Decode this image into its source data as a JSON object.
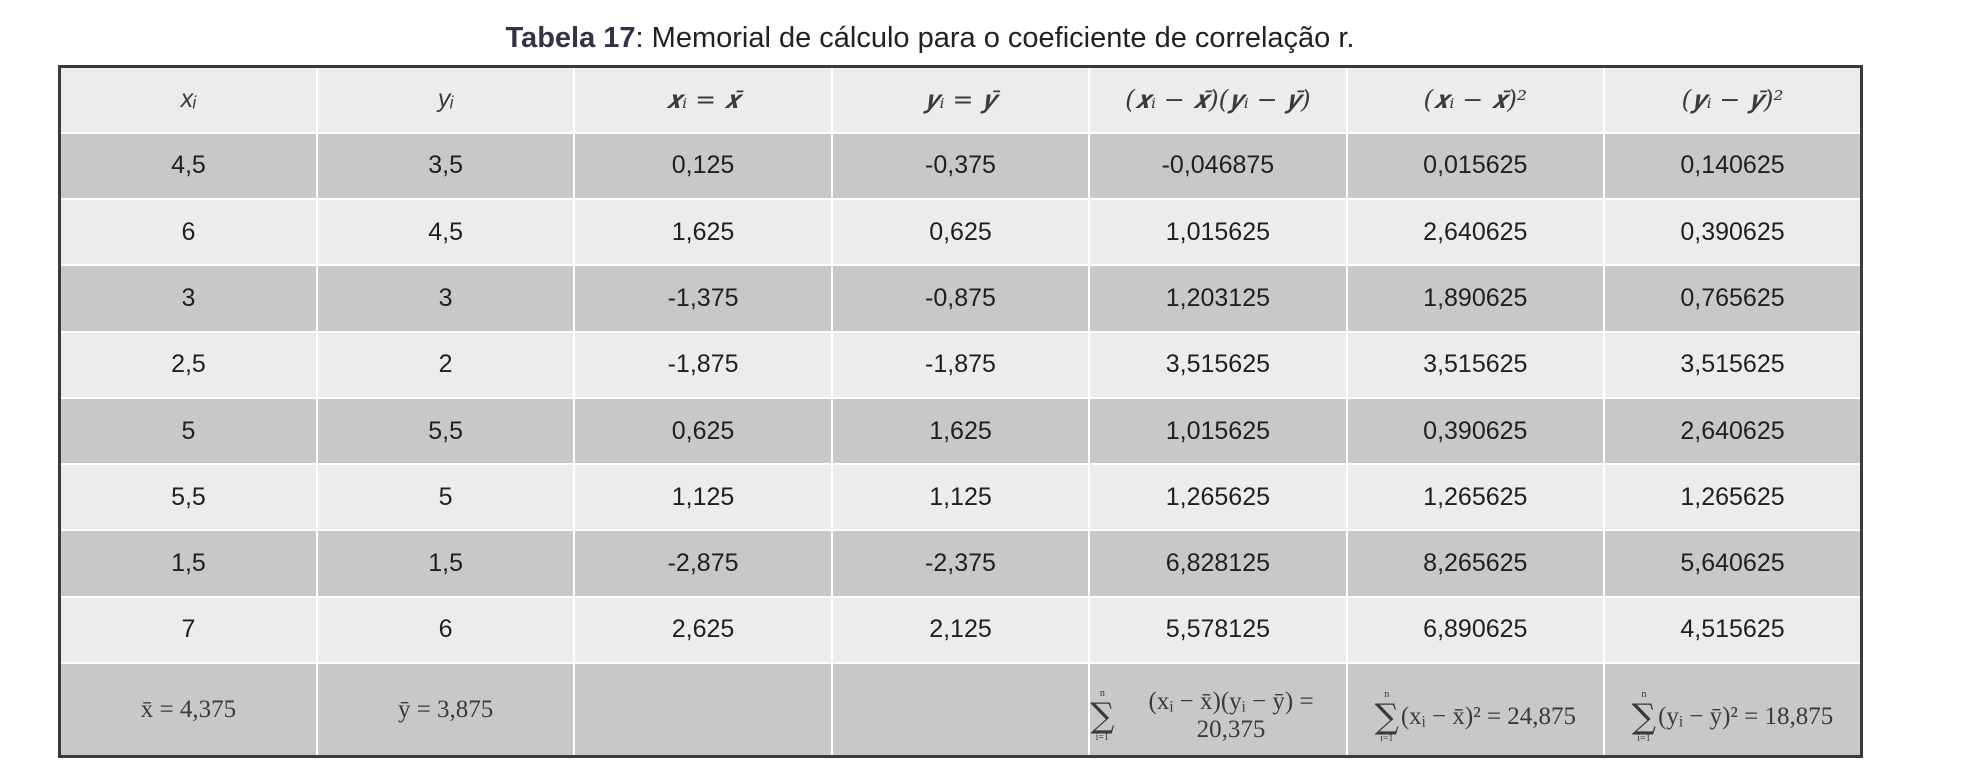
{
  "caption": {
    "label": "Tabela 17",
    "text": ": Memorial de cálculo para o coeficiente de correlação r."
  },
  "table": {
    "headers": [
      "xᵢ",
      "yᵢ",
      "𝒙ᵢ = 𝒙̄",
      "𝒚ᵢ = 𝒚̄",
      "(𝒙ᵢ − 𝒙̄)(𝒚ᵢ − 𝒚̄)",
      "(𝒙ᵢ − 𝒙̄)²",
      "(𝒚ᵢ − 𝒚̄)²"
    ],
    "rows": [
      [
        "4,5",
        "3,5",
        "0,125",
        "-0,375",
        "-0,046875",
        "0,015625",
        "0,140625"
      ],
      [
        "6",
        "4,5",
        "1,625",
        "0,625",
        "1,015625",
        "2,640625",
        "0,390625"
      ],
      [
        "3",
        "3",
        "-1,375",
        "-0,875",
        "1,203125",
        "1,890625",
        "0,765625"
      ],
      [
        "2,5",
        "2",
        "-1,875",
        "-1,875",
        "3,515625",
        "3,515625",
        "3,515625"
      ],
      [
        "5",
        "5,5",
        "0,625",
        "1,625",
        "1,015625",
        "0,390625",
        "2,640625"
      ],
      [
        "5,5",
        "5",
        "1,125",
        "1,125",
        "1,265625",
        "1,265625",
        "1,265625"
      ],
      [
        "1,5",
        "1,5",
        "-2,875",
        "-2,375",
        "6,828125",
        "8,265625",
        "5,640625"
      ],
      [
        "7",
        "6",
        "2,625",
        "2,125",
        "5,578125",
        "6,890625",
        "4,515625"
      ]
    ],
    "summary": {
      "mean_x": "x̄ = 4,375",
      "mean_y": "ȳ = 3,875",
      "sigma_upper": "n",
      "sigma_lower": "i=1",
      "sum_xy": "(xᵢ − x̄)(yᵢ − ȳ) = 20,375",
      "sum_xx": "(xᵢ − x̄)² = 24,875",
      "sum_yy": "(yᵢ − ȳ)² = 18,875"
    }
  }
}
